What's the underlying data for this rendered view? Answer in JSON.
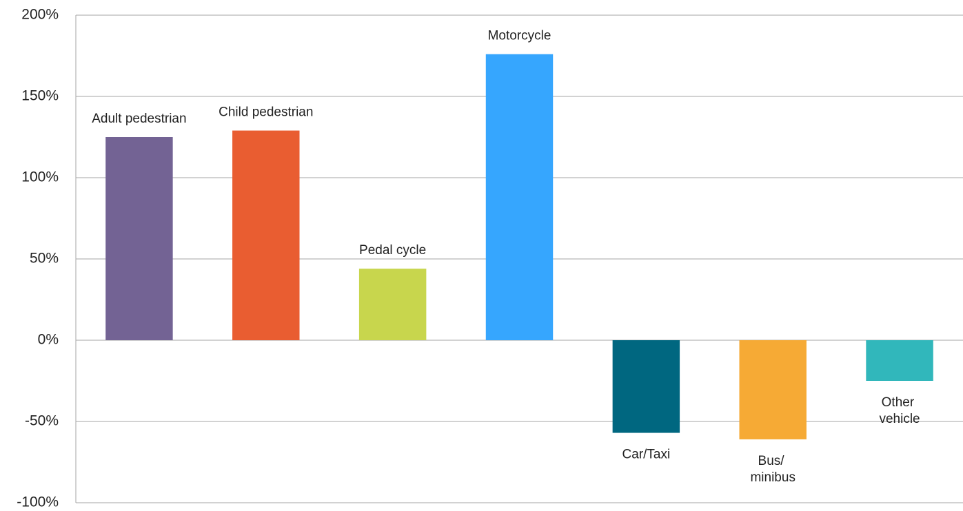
{
  "chart_data": {
    "type": "bar",
    "categories": [
      "Adult pedestrian",
      "Child pedestrian",
      "Pedal cycle",
      "Motorcycle",
      "Car/Taxi",
      "Bus/ minibus",
      "Other vehicle"
    ],
    "values": [
      125,
      129,
      44,
      176,
      -57,
      -61,
      -25
    ],
    "colors": [
      "#736394",
      "#e95d31",
      "#c8d64d",
      "#36a6fe",
      "#006780",
      "#f6aa35",
      "#31b7bb"
    ],
    "ylim": [
      -100,
      200
    ],
    "yticks": [
      {
        "value": -100,
        "label": "-100%"
      },
      {
        "value": -50,
        "label": "-50%"
      },
      {
        "value": 0,
        "label": "0%"
      },
      {
        "value": 50,
        "label": "50%"
      },
      {
        "value": 100,
        "label": "100%"
      },
      {
        "value": 150,
        "label": "150%"
      },
      {
        "value": 200,
        "label": "200%"
      }
    ],
    "grid": true
  }
}
